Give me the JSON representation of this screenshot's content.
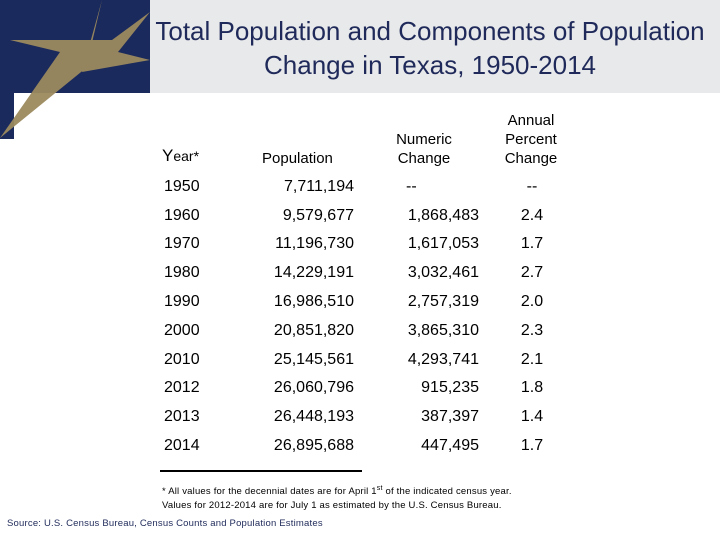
{
  "slide": {
    "title_line1": "Total Population and Components of Population",
    "title_line2": "Change in Texas, 1950-2014"
  },
  "headers": {
    "year_initial": "Y",
    "year_rest": "ear*",
    "population": "Population",
    "numeric_change_line1": "Numeric",
    "numeric_change_line2": "Change",
    "annual_percent_line1": "Annual",
    "annual_percent_line2": "Percent",
    "annual_percent_line3": "Change"
  },
  "rows": [
    {
      "year": "1950",
      "population": "7,711,194",
      "numeric_change": "--",
      "annual_percent_change": "--"
    },
    {
      "year": "1960",
      "population": "9,579,677",
      "numeric_change": "1,868,483",
      "annual_percent_change": "2.4"
    },
    {
      "year": "1970",
      "population": "11,196,730",
      "numeric_change": "1,617,053",
      "annual_percent_change": "1.7"
    },
    {
      "year": "1980",
      "population": "14,229,191",
      "numeric_change": "3,032,461",
      "annual_percent_change": "2.7"
    },
    {
      "year": "1990",
      "population": "16,986,510",
      "numeric_change": "2,757,319",
      "annual_percent_change": "2.0"
    },
    {
      "year": "2000",
      "population": "20,851,820",
      "numeric_change": "3,865,310",
      "annual_percent_change": "2.3"
    },
    {
      "year": "2010",
      "population": "25,145,561",
      "numeric_change": "4,293,741",
      "annual_percent_change": "2.1"
    },
    {
      "year": "2012",
      "population": "26,060,796",
      "numeric_change": "915,235",
      "annual_percent_change": "1.8"
    },
    {
      "year": "2013",
      "population": "26,448,193",
      "numeric_change": "387,397",
      "annual_percent_change": "1.4"
    },
    {
      "year": "2014",
      "population": "26,895,688",
      "numeric_change": "447,495",
      "annual_percent_change": "1.7"
    }
  ],
  "footnote": {
    "line1_before": "* All values for the decennial dates are for April 1",
    "line1_sup": "st",
    "line1_after": " of the indicated census year.",
    "line2": "Values for 2012-2014 are for July 1 as estimated by the U.S. Census Bureau."
  },
  "source": "Source: U.S. Census Bureau, Census Counts and Population Estimates",
  "colors": {
    "navy": "#1b2a5c",
    "gold": "#9c8a5e",
    "header_gray": "#e8e9ea"
  },
  "icons": {
    "logo": "star-icon"
  }
}
